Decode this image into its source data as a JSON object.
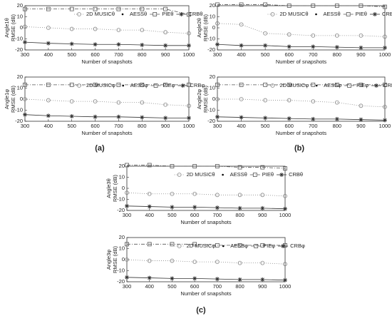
{
  "chart_data": [
    {
      "type": "line",
      "ylabel": [
        "Angle1θ",
        "RMSE (dB)"
      ],
      "xlabel": "Number of snapshots",
      "x": [
        300,
        400,
        500,
        600,
        700,
        800,
        900,
        1000
      ],
      "xlim": [
        300,
        1000
      ],
      "xticks": [
        300,
        400,
        500,
        600,
        700,
        800,
        900,
        1000
      ],
      "ylim": [
        -20,
        20
      ],
      "yticks": [
        -20,
        -10,
        0,
        10,
        20
      ],
      "legend": "upper right",
      "series": [
        {
          "name": "2D MUSICθ",
          "color": "#888888",
          "marker": "circle",
          "dash": "1,2",
          "values": [
            1,
            0,
            -1,
            -1,
            -2,
            -2,
            -4,
            -5
          ]
        },
        {
          "name": "AESSθ",
          "color": "#000000",
          "marker": "dot",
          "dash": "none",
          "values": [
            -13,
            -14,
            -14.5,
            -15,
            -15,
            -15.5,
            -16,
            -16
          ]
        },
        {
          "name": "PIEθ",
          "color": "#555555",
          "marker": "square",
          "dash": "5,2,1,2",
          "values": [
            17,
            17,
            17,
            17,
            17,
            17,
            17,
            12
          ]
        },
        {
          "name": "CRBθ",
          "color": "#333333",
          "marker": "star",
          "dash": "none",
          "values": [
            -13,
            -14,
            -14.5,
            -15,
            -15,
            -15.5,
            -16,
            -16
          ]
        }
      ]
    },
    {
      "type": "line",
      "ylabel": [
        "Angle1φ",
        "RMSE (dB)"
      ],
      "xlabel": "Number of snapshots",
      "x": [
        300,
        400,
        500,
        600,
        700,
        800,
        900,
        1000
      ],
      "xlim": [
        300,
        1000
      ],
      "xticks": [
        300,
        400,
        500,
        600,
        700,
        800,
        900,
        1000
      ],
      "ylim": [
        -20,
        20
      ],
      "yticks": [
        -20,
        -10,
        0,
        10,
        20
      ],
      "legend": "upper right",
      "series": [
        {
          "name": "2D MUSICφ",
          "color": "#888888",
          "marker": "circle",
          "dash": "1,2",
          "values": [
            0,
            -1,
            -2,
            -2,
            -3,
            -3,
            -5,
            -6
          ]
        },
        {
          "name": "AESSφ",
          "color": "#000000",
          "marker": "dot",
          "dash": "none",
          "values": [
            -14,
            -15,
            -15.5,
            -16,
            -16,
            -16.5,
            -17,
            -17
          ]
        },
        {
          "name": "PIEφ",
          "color": "#555555",
          "marker": "square",
          "dash": "5,2,1,2",
          "values": [
            13,
            13,
            13,
            13,
            13,
            13,
            13,
            13
          ]
        },
        {
          "name": "CRBφ",
          "color": "#333333",
          "marker": "star",
          "dash": "none",
          "values": [
            -14,
            -15,
            -15.5,
            -16,
            -16,
            -16.5,
            -17,
            -17
          ]
        }
      ]
    },
    {
      "type": "line",
      "ylabel": [
        "Angle2θ",
        "RMSE (dB)"
      ],
      "xlabel": "Number of snapshots",
      "x": [
        300,
        400,
        500,
        600,
        700,
        800,
        900,
        1000
      ],
      "xlim": [
        300,
        1000
      ],
      "xticks": [
        300,
        400,
        500,
        600,
        700,
        800,
        900,
        1000
      ],
      "ylim": [
        -20,
        20
      ],
      "yticks": [
        -20,
        -10,
        0,
        10,
        20
      ],
      "legend": "upper right",
      "series": [
        {
          "name": "2D MUSICθ",
          "color": "#888888",
          "marker": "circle",
          "dash": "1,2",
          "values": [
            4,
            3,
            -5,
            -6,
            -7,
            -7,
            -7,
            -8
          ]
        },
        {
          "name": "AESSθ",
          "color": "#000000",
          "marker": "dot",
          "dash": "none",
          "values": [
            -15,
            -16,
            -16,
            -17,
            -17,
            -17.5,
            -18,
            -18
          ]
        },
        {
          "name": "PIEθ",
          "color": "#555555",
          "marker": "square",
          "dash": "5,2,1,2",
          "values": [
            21,
            21,
            21,
            20,
            20,
            20,
            20,
            19
          ]
        },
        {
          "name": "CRBθ",
          "color": "#333333",
          "marker": "star",
          "dash": "none",
          "values": [
            -15,
            -16,
            -16,
            -17,
            -17,
            -17.5,
            -18,
            -18
          ]
        }
      ]
    },
    {
      "type": "line",
      "ylabel": [
        "Angle2φ",
        "RMSE (dB)"
      ],
      "xlabel": "Number of snapshots",
      "x": [
        300,
        400,
        500,
        600,
        700,
        800,
        900,
        1000
      ],
      "xlim": [
        300,
        1000
      ],
      "xticks": [
        300,
        400,
        500,
        600,
        700,
        800,
        900,
        1000
      ],
      "ylim": [
        -20,
        20
      ],
      "yticks": [
        -20,
        -10,
        0,
        10,
        20
      ],
      "legend": "upper right",
      "series": [
        {
          "name": "2D MUSICφ",
          "color": "#888888",
          "marker": "circle",
          "dash": "1,2",
          "values": [
            0,
            0,
            -1,
            -1,
            -2,
            -3,
            -6,
            -7
          ]
        },
        {
          "name": "AESSφ",
          "color": "#000000",
          "marker": "dot",
          "dash": "none",
          "values": [
            -16,
            -16.5,
            -17,
            -17.5,
            -18,
            -18,
            -18.5,
            -19
          ]
        },
        {
          "name": "PIEφ",
          "color": "#555555",
          "marker": "square",
          "dash": "5,2,1,2",
          "values": [
            13,
            13,
            13,
            13,
            13,
            13,
            13,
            13
          ]
        },
        {
          "name": "CRBφ",
          "color": "#333333",
          "marker": "star",
          "dash": "none",
          "values": [
            -16,
            -16.5,
            -17,
            -17.5,
            -18,
            -18,
            -18.5,
            -19
          ]
        }
      ]
    },
    {
      "type": "line",
      "ylabel": [
        "Angle3θ",
        "RMSE (dB)"
      ],
      "xlabel": "Number of snapshots",
      "x": [
        300,
        400,
        500,
        600,
        700,
        800,
        900,
        1000
      ],
      "xlim": [
        300,
        1000
      ],
      "xticks": [
        300,
        400,
        500,
        600,
        700,
        800,
        900,
        1000
      ],
      "ylim": [
        -20,
        20
      ],
      "yticks": [
        -20,
        -10,
        0,
        10,
        20
      ],
      "legend": "upper right",
      "series": [
        {
          "name": "2D MUSICθ",
          "color": "#888888",
          "marker": "circle",
          "dash": "1,2",
          "values": [
            -4,
            -5,
            -5,
            -5,
            -6,
            -6,
            -6,
            -7
          ]
        },
        {
          "name": "AESSθ",
          "color": "#000000",
          "marker": "dot",
          "dash": "none",
          "values": [
            -16,
            -16.5,
            -17,
            -17,
            -17.5,
            -18,
            -18,
            -18.5
          ]
        },
        {
          "name": "PIEθ",
          "color": "#555555",
          "marker": "square",
          "dash": "5,2,1,2",
          "values": [
            21,
            21,
            20,
            20,
            20,
            19,
            19,
            18
          ]
        },
        {
          "name": "CRBθ",
          "color": "#333333",
          "marker": "star",
          "dash": "none",
          "values": [
            -16,
            -16.5,
            -17,
            -17,
            -17.5,
            -18,
            -18,
            -18.5
          ]
        }
      ]
    },
    {
      "type": "line",
      "ylabel": [
        "Angle3φ",
        "RMSE (dB)"
      ],
      "xlabel": "Number of snapshots",
      "x": [
        300,
        400,
        500,
        600,
        700,
        800,
        900,
        1000
      ],
      "xlim": [
        300,
        1000
      ],
      "xticks": [
        300,
        400,
        500,
        600,
        700,
        800,
        900,
        1000
      ],
      "ylim": [
        -20,
        20
      ],
      "yticks": [
        -20,
        -10,
        0,
        10,
        20
      ],
      "legend": "upper right",
      "series": [
        {
          "name": "2D MUSICφ",
          "color": "#888888",
          "marker": "circle",
          "dash": "1,2",
          "values": [
            0,
            -1,
            -1,
            -2,
            -2,
            -3,
            -3,
            -4
          ]
        },
        {
          "name": "AESSφ",
          "color": "#000000",
          "marker": "dot",
          "dash": "none",
          "values": [
            -16,
            -16.5,
            -17,
            -17,
            -17.5,
            -18,
            -18,
            -18.5
          ]
        },
        {
          "name": "PIEφ",
          "color": "#555555",
          "marker": "square",
          "dash": "5,2,1,2",
          "values": [
            14,
            14,
            14,
            14,
            13,
            13,
            13,
            13
          ]
        },
        {
          "name": "CRBφ",
          "color": "#333333",
          "marker": "star",
          "dash": "none",
          "values": [
            -16,
            -16.5,
            -17,
            -17,
            -17.5,
            -18,
            -18,
            -18.5
          ]
        }
      ]
    }
  ],
  "panel_labels": [
    "(a)",
    "(b)",
    "(c)"
  ]
}
